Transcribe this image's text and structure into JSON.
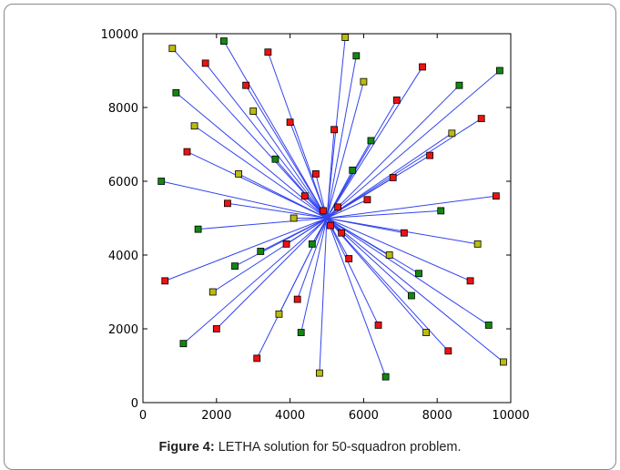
{
  "caption": {
    "label": "Figure 4:",
    "text": "LETHA solution for 50-squadron problem."
  },
  "chart_data": {
    "type": "scatter",
    "title": "",
    "xlabel": "",
    "ylabel": "",
    "xlim": [
      0,
      10000
    ],
    "ylim": [
      0,
      10000
    ],
    "x_ticks": [
      0,
      2000,
      4000,
      6000,
      8000,
      10000
    ],
    "y_ticks": [
      0,
      2000,
      4000,
      6000,
      8000,
      10000
    ],
    "grid": false,
    "hub": [
      5000,
      5000
    ],
    "colors": {
      "red": "#ee1111",
      "green": "#118811",
      "yellow": "#bbbb11",
      "route": "#3344ee"
    },
    "series": [
      {
        "color": "red",
        "points": [
          [
            1700,
            9200
          ],
          [
            6800,
            6100
          ],
          [
            4200,
            2800
          ],
          [
            7600,
            9100
          ],
          [
            2300,
            5400
          ],
          [
            8900,
            3300
          ],
          [
            5200,
            7400
          ],
          [
            3100,
            1200
          ],
          [
            6400,
            2100
          ],
          [
            1200,
            6800
          ],
          [
            9200,
            7700
          ],
          [
            4700,
            6200
          ],
          [
            5600,
            3900
          ],
          [
            2800,
            8600
          ],
          [
            7100,
            4600
          ],
          [
            3900,
            4300
          ],
          [
            6100,
            5500
          ],
          [
            4400,
            5600
          ],
          [
            5400,
            4600
          ],
          [
            4900,
            5200
          ],
          [
            5100,
            4800
          ],
          [
            5300,
            5300
          ],
          [
            8300,
            1400
          ],
          [
            600,
            3300
          ],
          [
            9600,
            5600
          ],
          [
            3400,
            9500
          ],
          [
            6900,
            8200
          ],
          [
            2000,
            2000
          ],
          [
            7800,
            6700
          ],
          [
            4000,
            7600
          ]
        ]
      },
      {
        "color": "green",
        "points": [
          [
            900,
            8400
          ],
          [
            7300,
            2900
          ],
          [
            2500,
            3700
          ],
          [
            8600,
            8600
          ],
          [
            5800,
            9400
          ],
          [
            1500,
            4700
          ],
          [
            9400,
            2100
          ],
          [
            3600,
            6600
          ],
          [
            6600,
            700
          ],
          [
            1100,
            1600
          ],
          [
            8100,
            5200
          ],
          [
            4300,
            1900
          ],
          [
            6200,
            7100
          ],
          [
            2200,
            9800
          ],
          [
            9700,
            9000
          ],
          [
            3200,
            4100
          ],
          [
            7500,
            3500
          ],
          [
            500,
            6000
          ],
          [
            5700,
            6300
          ],
          [
            4600,
            4300
          ]
        ]
      },
      {
        "color": "yellow",
        "points": [
          [
            1400,
            7500
          ],
          [
            8400,
            7300
          ],
          [
            3700,
            2400
          ],
          [
            6000,
            8700
          ],
          [
            2600,
            6200
          ],
          [
            9100,
            4300
          ],
          [
            4800,
            800
          ],
          [
            7700,
            1900
          ],
          [
            1900,
            3000
          ],
          [
            5500,
            9900
          ],
          [
            3000,
            7900
          ],
          [
            6700,
            4000
          ],
          [
            800,
            9600
          ],
          [
            9800,
            1100
          ],
          [
            4100,
            5000
          ]
        ]
      }
    ]
  }
}
